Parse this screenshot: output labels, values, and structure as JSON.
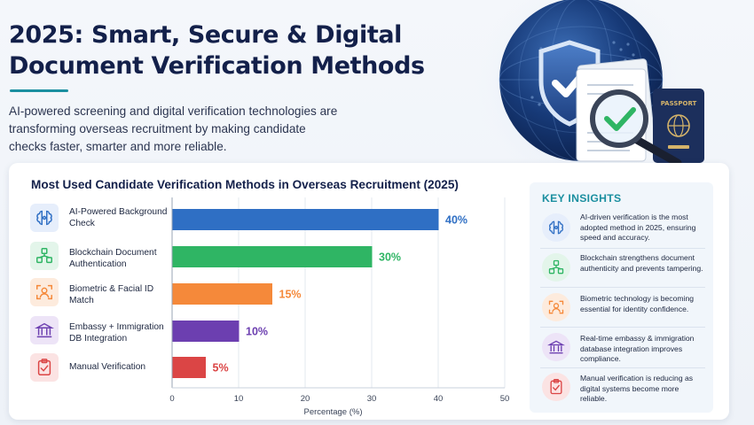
{
  "header": {
    "title": "2025: Smart, Secure & Digital Document Verification Methods",
    "subtitle": "AI-powered screening and digital verification technologies are transforming overseas recruitment by making candidate checks faster, smarter and more reliable."
  },
  "hero": {
    "passport_label": "PASSPORT"
  },
  "colors": {
    "ai": "#2f6fc4",
    "blockchain": "#2fb564",
    "biometric": "#f5893a",
    "embassy": "#6c3fb0",
    "manual": "#db4545",
    "accent": "#1b8fa0"
  },
  "methods": [
    {
      "label": "AI-Powered Background Check",
      "icon": "brain-icon"
    },
    {
      "label": "Blockchain Document Authentication",
      "icon": "blockchain-icon"
    },
    {
      "label": "Biometric & Facial ID Match",
      "icon": "face-id-icon"
    },
    {
      "label": "Embassy + Immigration DB Integration",
      "icon": "building-icon"
    },
    {
      "label": "Manual Verification",
      "icon": "clipboard-icon"
    }
  ],
  "chart_data": {
    "type": "bar",
    "orientation": "horizontal",
    "title": "Most Used Candidate Verification Methods in Overseas Recruitment (2025)",
    "categories": [
      "AI-Powered Background Check",
      "Blockchain Document Authentication",
      "Biometric & Facial ID Match",
      "Embassy + Immigration DB Integration",
      "Manual Verification"
    ],
    "values": [
      40,
      30,
      15,
      10,
      5
    ],
    "data_labels": [
      "40%",
      "30%",
      "15%",
      "10%",
      "5%"
    ],
    "xlabel": "Percentage (%)",
    "ylabel": "",
    "xlim": [
      0,
      50
    ],
    "xticks": [
      "0",
      "10",
      "20",
      "30",
      "40",
      "50"
    ],
    "grid": true,
    "legend": "none"
  },
  "insights": {
    "title": "KEY INSIGHTS",
    "items": [
      {
        "text": "AI-driven verification is the most adopted method in 2025, ensuring speed and accuracy.",
        "icon": "brain-icon"
      },
      {
        "text": "Blockchain strengthens document authenticity and prevents tampering.",
        "icon": "blockchain-icon"
      },
      {
        "text": "Biometric technology is becoming essential for identity confidence.",
        "icon": "face-id-icon"
      },
      {
        "text": "Real-time embassy & immigration database integration improves compliance.",
        "icon": "building-icon"
      },
      {
        "text": "Manual verification is reducing as digital systems become more reliable.",
        "icon": "clipboard-icon"
      }
    ]
  }
}
